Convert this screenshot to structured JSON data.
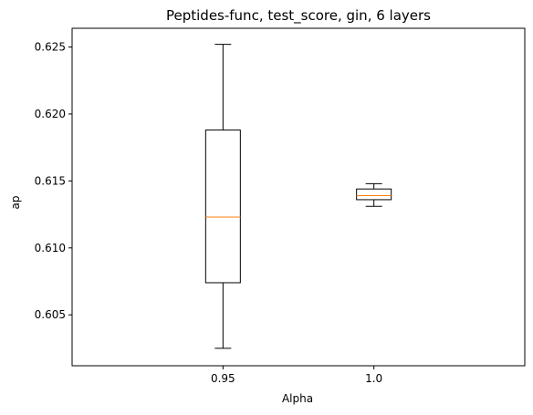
{
  "chart_data": {
    "type": "box",
    "title": "Peptides-func, test_score, gin, 6 layers",
    "xlabel": "Alpha",
    "ylabel": "ap",
    "categories": [
      "0.95",
      "1.0"
    ],
    "ylim": [
      0.6012,
      0.6264
    ],
    "yticks": [
      "0.605",
      "0.610",
      "0.615",
      "0.620",
      "0.625"
    ],
    "boxes": [
      {
        "category": "0.95",
        "whisker_low": 0.6025,
        "q1": 0.6074,
        "median": 0.6123,
        "q3": 0.6188,
        "whisker_high": 0.6252
      },
      {
        "category": "1.0",
        "whisker_low": 0.6131,
        "q1": 0.6136,
        "median": 0.6139,
        "q3": 0.6144,
        "whisker_high": 0.6148
      }
    ],
    "grid": false,
    "colors": {
      "box": "#000000",
      "median": "#ff7f0e"
    }
  }
}
